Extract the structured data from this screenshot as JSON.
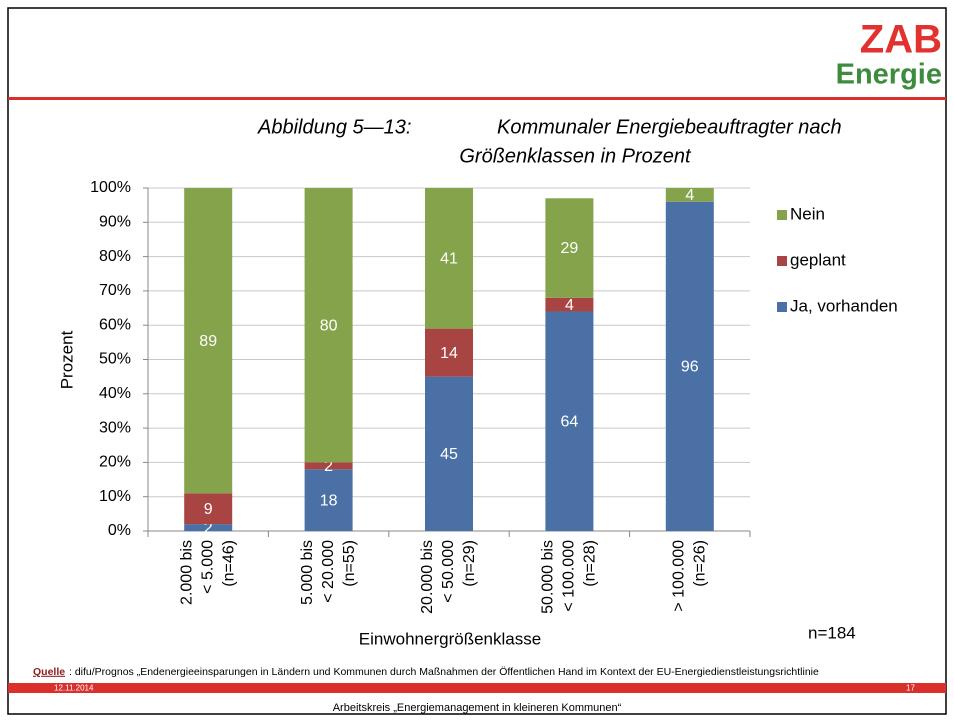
{
  "header": {
    "logo_top": "ZAB",
    "logo_bottom": "Energie"
  },
  "chart_data": {
    "type": "stacked_bar",
    "title": [
      "Abbildung 5—13:",
      "Kommunaler Energiebeauftragter nach",
      "Größenklassen in Prozent"
    ],
    "categories": [
      [
        "2.000 bis",
        "< 5.000",
        "(n=46)"
      ],
      [
        "5.000 bis",
        "< 20.000",
        "(n=55)"
      ],
      [
        "20.000 bis",
        "< 50.000",
        "(n=29)"
      ],
      [
        "50.000 bis",
        "< 100.000",
        "(n=28)"
      ],
      [
        "> 100.000",
        "(n=26)"
      ]
    ],
    "series": [
      {
        "name": "Ja, vorhanden",
        "color": "#4a70a6",
        "values": [
          2,
          18,
          45,
          64,
          96
        ]
      },
      {
        "name": "geplant",
        "color": "#a84442",
        "values": [
          9,
          2,
          14,
          4,
          null
        ]
      },
      {
        "name": "Nein",
        "color": "#84a34a",
        "values": [
          89,
          80,
          41,
          29,
          4
        ]
      }
    ],
    "ylim": [
      0,
      100
    ],
    "yticks": [
      {
        "value": 0,
        "label": "0%"
      },
      {
        "value": 10,
        "label": "10%"
      },
      {
        "value": 20,
        "label": "20%"
      },
      {
        "value": 30,
        "label": "30%"
      },
      {
        "value": 40,
        "label": "40%"
      },
      {
        "value": 50,
        "label": "50%"
      },
      {
        "value": 60,
        "label": "60%"
      },
      {
        "value": 70,
        "label": "70%"
      },
      {
        "value": 80,
        "label": "80%"
      },
      {
        "value": 90,
        "label": "90%"
      },
      {
        "value": 100,
        "label": "100%"
      }
    ],
    "grid": true,
    "legend": "right",
    "ylabel": "Prozent",
    "xlabel": "Einwohnergrößenklasse",
    "annotation": "n=184"
  },
  "footer": {
    "source_label": "Quelle",
    "source_text": ": difu/Prognos „Endenergieeinsparungen in Ländern und Kommunen durch Maßnahmen der Öffentlichen Hand im Kontext der EU-Energiedienstleistungsrichtlinie",
    "date": "12.11.2014",
    "page": "17",
    "title": "Arbeitskreis „Energiemanagement in kleineren Kommunen“"
  }
}
